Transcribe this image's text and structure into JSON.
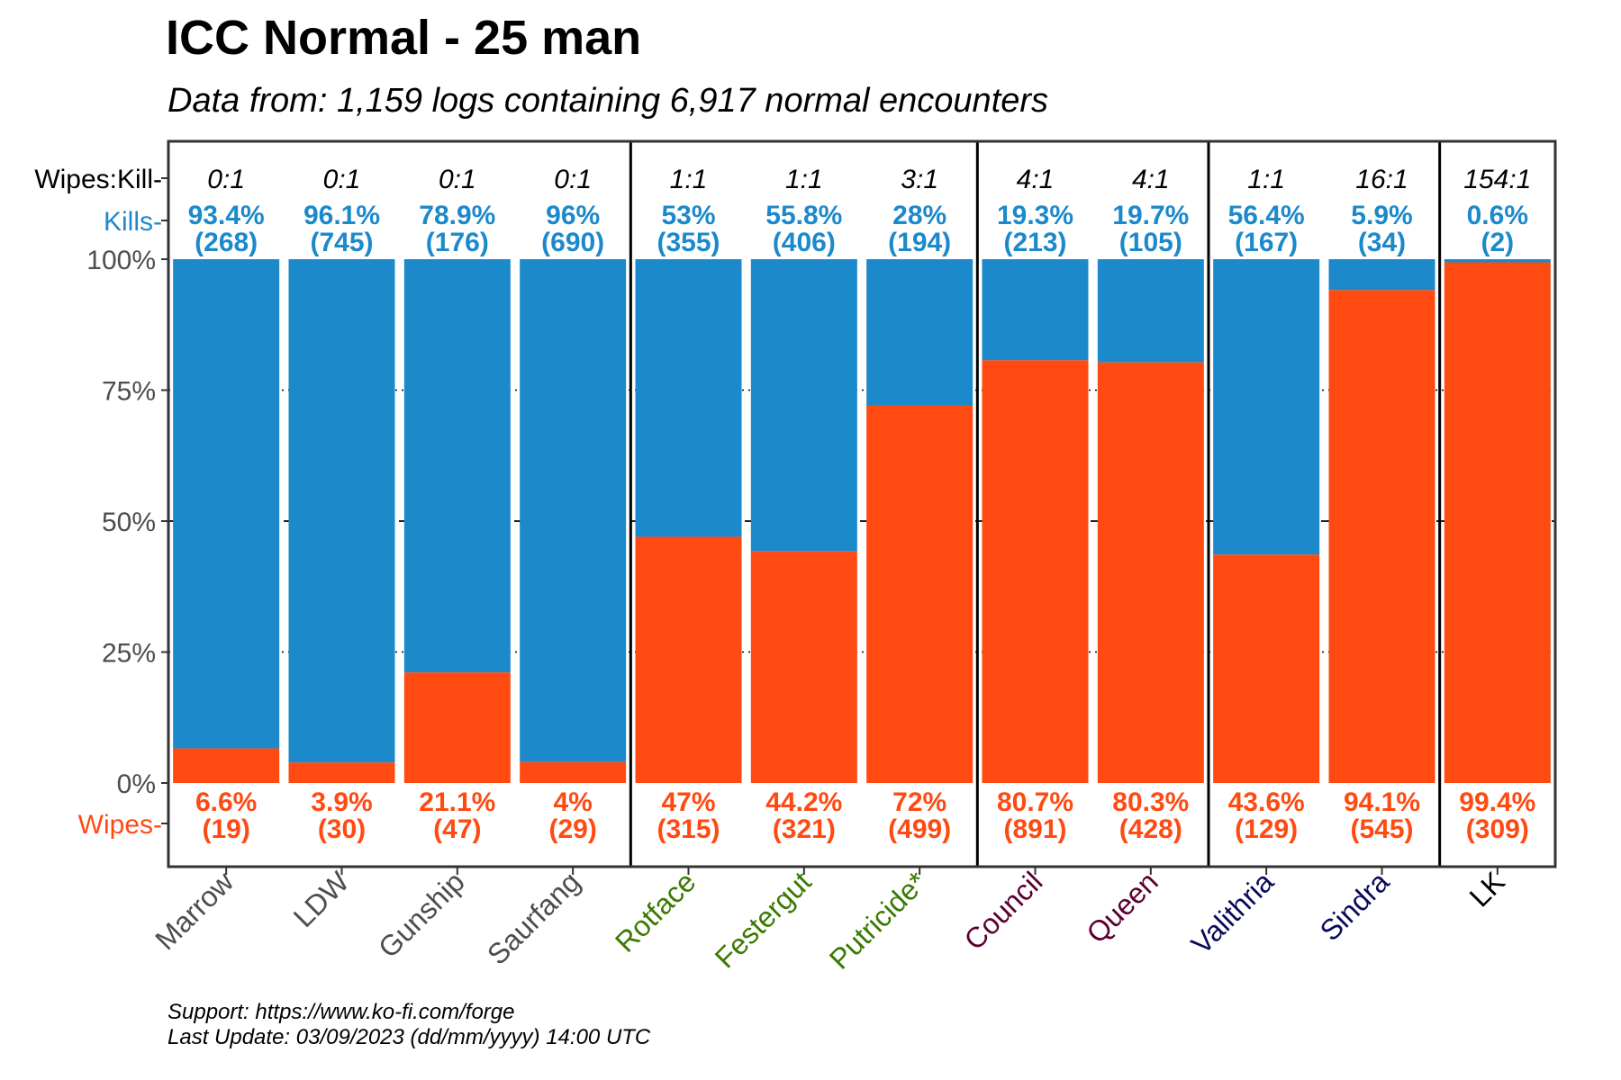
{
  "title": "ICC Normal - 25 man",
  "subtitle": "Data from: 1,159 logs containing 6,917 normal encounters",
  "footer": {
    "line1": "Support: https://www.ko-fi.com/forge",
    "line2": "Last Update: 03/09/2023 (dd/mm/yyyy) 14:00 UTC"
  },
  "colors": {
    "kills": "#1c89cb",
    "wipes": "#ff4a12",
    "wing_lower": "#4d4d4d",
    "wing_plague": "#3a7a00",
    "wing_crimson": "#5a0030",
    "wing_frost": "#0a0a5a",
    "wing_frozen": "#000000"
  },
  "labels": {
    "wipes_kill": "Wipes:Kill-",
    "kills": "Kills-",
    "wipes": "Wipes-"
  },
  "chart_data": {
    "type": "bar",
    "stacked": true,
    "ylim": [
      0,
      100
    ],
    "yticks": [
      "0%",
      "25%",
      "50%",
      "75%",
      "100%"
    ],
    "grid": {
      "dotted": [
        25,
        75
      ],
      "dashed": [
        50
      ]
    },
    "categories": [
      "Marrow",
      "LDW",
      "Gunship",
      "Saurfang",
      "Rotface",
      "Festergut",
      "Putricide*",
      "Council",
      "Queen",
      "Valithria",
      "Sindra",
      "LK"
    ],
    "category_colors": [
      "wing_lower",
      "wing_lower",
      "wing_lower",
      "wing_lower",
      "wing_plague",
      "wing_plague",
      "wing_plague",
      "wing_crimson",
      "wing_crimson",
      "wing_frost",
      "wing_frost",
      "wing_frozen"
    ],
    "group_dividers_after": [
      3,
      6,
      8,
      10
    ],
    "ratios": [
      "0:1",
      "0:1",
      "0:1",
      "0:1",
      "1:1",
      "1:1",
      "3:1",
      "4:1",
      "4:1",
      "1:1",
      "16:1",
      "154:1"
    ],
    "series": [
      {
        "name": "Wipes",
        "values": [
          6.6,
          3.9,
          21.1,
          4,
          47,
          44.2,
          72,
          80.7,
          80.3,
          43.6,
          94.1,
          99.4
        ],
        "pct_labels": [
          "6.6%",
          "3.9%",
          "21.1%",
          "4%",
          "47%",
          "44.2%",
          "72%",
          "80.7%",
          "80.3%",
          "43.6%",
          "94.1%",
          "99.4%"
        ],
        "count_labels": [
          "(19)",
          "(30)",
          "(47)",
          "(29)",
          "(315)",
          "(321)",
          "(499)",
          "(891)",
          "(428)",
          "(129)",
          "(545)",
          "(309)"
        ]
      },
      {
        "name": "Kills",
        "values": [
          93.4,
          96.1,
          78.9,
          96,
          53,
          55.8,
          28,
          19.3,
          19.7,
          56.4,
          5.9,
          0.6
        ],
        "pct_labels": [
          "93.4%",
          "96.1%",
          "78.9%",
          "96%",
          "53%",
          "55.8%",
          "28%",
          "19.3%",
          "19.7%",
          "56.4%",
          "5.9%",
          "0.6%"
        ],
        "count_labels": [
          "(268)",
          "(745)",
          "(176)",
          "(690)",
          "(355)",
          "(406)",
          "(194)",
          "(213)",
          "(105)",
          "(167)",
          "(34)",
          "(2)"
        ]
      }
    ]
  }
}
